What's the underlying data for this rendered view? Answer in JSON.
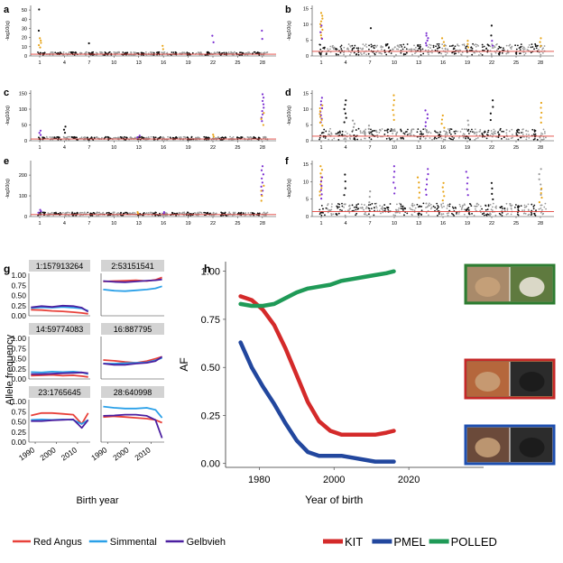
{
  "panel_labels": {
    "a": "a",
    "b": "b",
    "c": "c",
    "d": "d",
    "e": "e",
    "f": "f",
    "g": "g",
    "h": "h"
  },
  "manhattan": {
    "ylabel": "-log10(q)",
    "chrom_ticks": [
      "1",
      "4",
      "7",
      "10",
      "13",
      "16",
      "19",
      "22",
      "25",
      "28"
    ],
    "colors": {
      "black": "#111111",
      "gray": "#9a9a9a",
      "gold": "#e8a417",
      "purple": "#7b2fd1",
      "threshold": "#e0413a"
    },
    "panels": [
      {
        "id": "a",
        "yticks": [
          "0",
          "10",
          "20",
          "30",
          "40",
          "50"
        ],
        "ymax": 55
      },
      {
        "id": "b",
        "yticks": [
          "0",
          "5",
          "10",
          "15"
        ],
        "ymax": 16
      },
      {
        "id": "c",
        "yticks": [
          "0",
          "50",
          "100",
          "150"
        ],
        "ymax": 160
      },
      {
        "id": "d",
        "yticks": [
          "0",
          "5",
          "10",
          "15"
        ],
        "ymax": 16
      },
      {
        "id": "e",
        "yticks": [
          "0",
          "100",
          "200"
        ],
        "ymax": 270
      },
      {
        "id": "f",
        "yticks": [
          "0",
          "5",
          "10",
          "15"
        ],
        "ymax": 16
      }
    ]
  },
  "chart_data": [
    {
      "type": "line",
      "panel": "g",
      "ylabel": "Allele frequency",
      "xlabel": "Birth year",
      "x_ticks": [
        "1990",
        "2000",
        "2010"
      ],
      "y_ticks": [
        "0.00",
        "0.25",
        "0.50",
        "0.75",
        "1.00"
      ],
      "ylim": [
        0,
        1.05
      ],
      "xlim": [
        1987,
        2016
      ],
      "legend": [
        "Red Angus",
        "Simmental",
        "Gelbvieh"
      ],
      "series_colors": {
        "Red Angus": "#e8413a",
        "Simmental": "#2aa0e8",
        "Gelbvieh": "#4b1fa0"
      },
      "x": [
        1988,
        1993,
        1998,
        2003,
        2008,
        2012,
        2015
      ],
      "facets": [
        {
          "title": "1:157913264",
          "series": [
            {
              "name": "Red Angus",
              "values": [
                0.15,
                0.14,
                0.12,
                0.11,
                0.09,
                0.07,
                0.05
              ]
            },
            {
              "name": "Simmental",
              "values": [
                0.19,
                0.21,
                0.2,
                0.22,
                0.2,
                0.18,
                0.12
              ]
            },
            {
              "name": "Gelbvieh",
              "values": [
                0.21,
                0.24,
                0.22,
                0.25,
                0.24,
                0.2,
                0.1
              ]
            }
          ]
        },
        {
          "title": "2:53151541",
          "series": [
            {
              "name": "Red Angus",
              "values": [
                0.85,
                0.86,
                0.87,
                0.88,
                0.86,
                0.89,
                0.95
              ]
            },
            {
              "name": "Simmental",
              "values": [
                0.65,
                0.62,
                0.61,
                0.63,
                0.65,
                0.68,
                0.73
              ]
            },
            {
              "name": "Gelbvieh",
              "values": [
                0.86,
                0.84,
                0.83,
                0.85,
                0.87,
                0.88,
                0.9
              ]
            }
          ]
        },
        {
          "title": "14:59774083",
          "series": [
            {
              "name": "Red Angus",
              "values": [
                0.08,
                0.09,
                0.1,
                0.08,
                0.09,
                0.07,
                0.05
              ]
            },
            {
              "name": "Simmental",
              "values": [
                0.17,
                0.16,
                0.18,
                0.17,
                0.18,
                0.16,
                0.12
              ]
            },
            {
              "name": "Gelbvieh",
              "values": [
                0.12,
                0.12,
                0.13,
                0.14,
                0.15,
                0.16,
                0.14
              ]
            }
          ]
        },
        {
          "title": "16:887795",
          "series": [
            {
              "name": "Red Angus",
              "values": [
                0.47,
                0.45,
                0.42,
                0.4,
                0.44,
                0.5,
                0.55
              ]
            },
            {
              "name": "Simmental",
              "values": [
                0.38,
                0.38,
                0.39,
                0.4,
                0.41,
                0.46,
                0.52
              ]
            },
            {
              "name": "Gelbvieh",
              "values": [
                0.38,
                0.35,
                0.35,
                0.38,
                0.4,
                0.44,
                0.55
              ]
            }
          ]
        },
        {
          "title": "23:1765645",
          "series": [
            {
              "name": "Red Angus",
              "values": [
                0.66,
                0.72,
                0.72,
                0.7,
                0.68,
                0.45,
                0.72
              ]
            },
            {
              "name": "Simmental",
              "values": [
                0.55,
                0.56,
                0.55,
                0.56,
                0.55,
                0.45,
                0.55
              ]
            },
            {
              "name": "Gelbvieh",
              "values": [
                0.52,
                0.52,
                0.54,
                0.55,
                0.56,
                0.35,
                0.55
              ]
            }
          ]
        },
        {
          "title": "28:640998",
          "series": [
            {
              "name": "Red Angus",
              "values": [
                0.62,
                0.64,
                0.62,
                0.6,
                0.58,
                0.55,
                0.48
              ]
            },
            {
              "name": "Simmental",
              "values": [
                0.88,
                0.85,
                0.83,
                0.83,
                0.85,
                0.8,
                0.6
              ]
            },
            {
              "name": "Gelbvieh",
              "values": [
                0.65,
                0.66,
                0.68,
                0.68,
                0.65,
                0.55,
                0.1
              ]
            }
          ]
        }
      ]
    },
    {
      "type": "line",
      "panel": "h",
      "xlabel": "Year of birth",
      "ylabel": "AF",
      "x_ticks": [
        "1980",
        "2000",
        "2020"
      ],
      "y_ticks": [
        "0.00",
        "0.25",
        "0.50",
        "0.75",
        "1.00"
      ],
      "xlim": [
        1971,
        2040
      ],
      "ylim": [
        -0.02,
        1.05
      ],
      "grid": false,
      "legend_position": "bottom",
      "series": [
        {
          "name": "KIT",
          "color": "#d42a2a",
          "x": [
            1975,
            1978,
            1981,
            1984,
            1987,
            1990,
            1993,
            1996,
            1999,
            2002,
            2005,
            2008,
            2011,
            2014,
            2016
          ],
          "values": [
            0.87,
            0.85,
            0.8,
            0.72,
            0.6,
            0.46,
            0.32,
            0.22,
            0.17,
            0.15,
            0.15,
            0.15,
            0.15,
            0.16,
            0.17
          ]
        },
        {
          "name": "PMEL",
          "color": "#22479e",
          "x": [
            1975,
            1978,
            1981,
            1984,
            1987,
            1990,
            1993,
            1996,
            1999,
            2002,
            2005,
            2008,
            2011,
            2014,
            2016
          ],
          "values": [
            0.63,
            0.5,
            0.4,
            0.31,
            0.21,
            0.12,
            0.06,
            0.04,
            0.04,
            0.04,
            0.03,
            0.02,
            0.01,
            0.01,
            0.01
          ]
        },
        {
          "name": "POLLED",
          "color": "#1f9a57",
          "x": [
            1975,
            1978,
            1981,
            1984,
            1987,
            1990,
            1993,
            1996,
            1999,
            2002,
            2005,
            2008,
            2011,
            2014,
            2016
          ],
          "values": [
            0.83,
            0.82,
            0.82,
            0.83,
            0.86,
            0.89,
            0.91,
            0.92,
            0.93,
            0.95,
            0.96,
            0.97,
            0.98,
            0.99,
            1.0
          ]
        }
      ],
      "photo_frames": [
        "#2e7d32",
        "#c62828",
        "#1e4fb0"
      ]
    }
  ]
}
